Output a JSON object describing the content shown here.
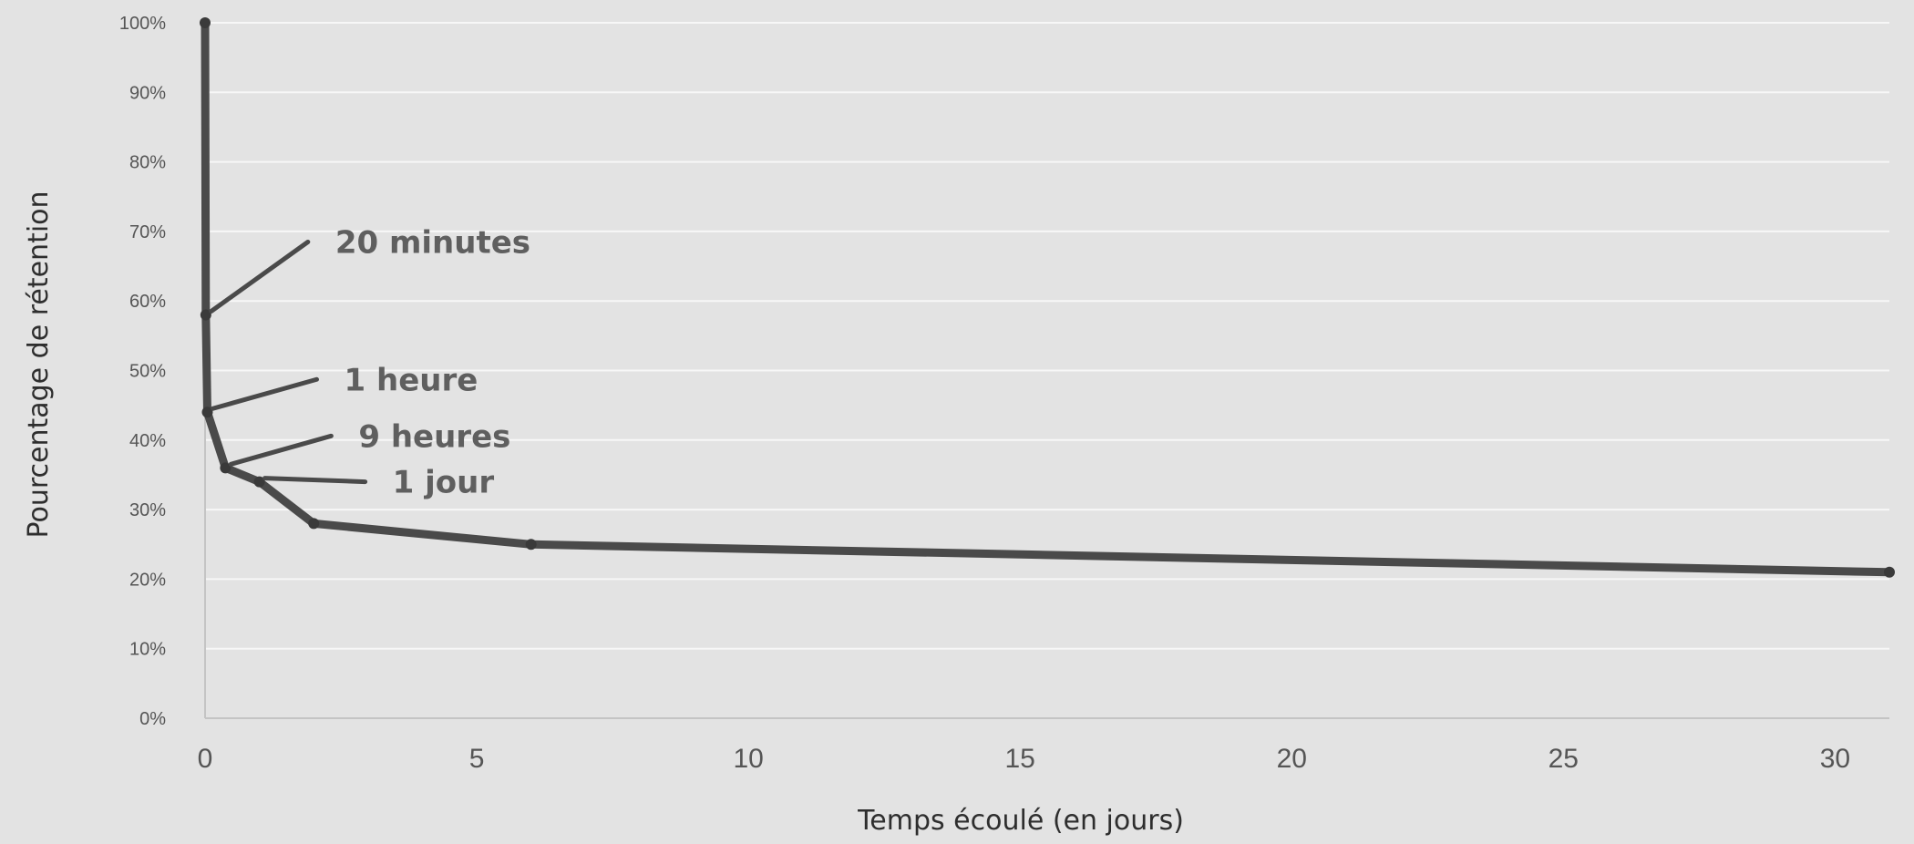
{
  "chart_data": {
    "type": "line",
    "title": "",
    "xlabel": "Temps écoulé (en jours)",
    "ylabel": "Pourcentage de rétention",
    "xlim": [
      0,
      31
    ],
    "ylim": [
      0,
      100
    ],
    "x_ticks": [
      "0",
      "5",
      "10",
      "15",
      "20",
      "25",
      "30"
    ],
    "y_ticks": [
      "0%",
      "10%",
      "20%",
      "30%",
      "40%",
      "50%",
      "60%",
      "70%",
      "80%",
      "90%",
      "100%"
    ],
    "grid": "horizontal",
    "legend": "none",
    "line_color": "#4a4a4a",
    "series": [
      {
        "x": [
          0,
          0.014,
          0.042,
          0.375,
          1,
          2,
          6,
          31
        ],
        "y": [
          100,
          58,
          44,
          36,
          34,
          28,
          25,
          21
        ]
      }
    ],
    "annotations": [
      {
        "text": "20 minutes",
        "x": 0.014,
        "y": 58
      },
      {
        "text": "1 heure",
        "x": 0.042,
        "y": 44
      },
      {
        "text": "9 heures",
        "x": 0.375,
        "y": 36
      },
      {
        "text": "1 jour",
        "x": 1,
        "y": 34
      }
    ]
  }
}
